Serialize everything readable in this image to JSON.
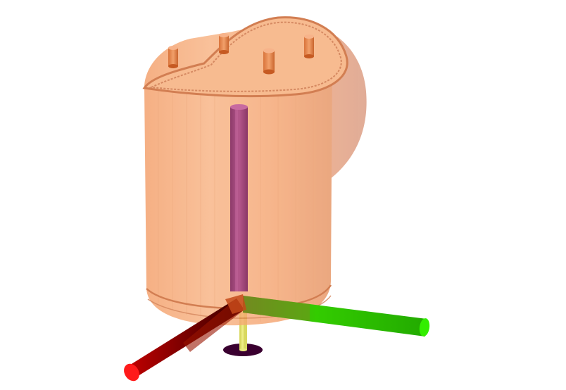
{
  "scene": {
    "background_color": "#ffffff",
    "model": {
      "kind": "translucent cylindrical housing with angled top",
      "fill_color": "#f7a36e",
      "opacity": 0.75,
      "rim_color": "#c65a22",
      "posts": 4
    },
    "rod": {
      "color": "#a0447a",
      "highlight": "#c86aa0"
    },
    "axes": {
      "x": {
        "color": "#ff0000",
        "shade": "#7a0000",
        "tip": "#ff1a1a"
      },
      "y": {
        "color": "#22dd00",
        "shade": "#118800",
        "tip": "#33ee00"
      },
      "z": {
        "color": "#e8e870",
        "shade": "#a8a840",
        "tip": "#3a0030"
      }
    }
  }
}
